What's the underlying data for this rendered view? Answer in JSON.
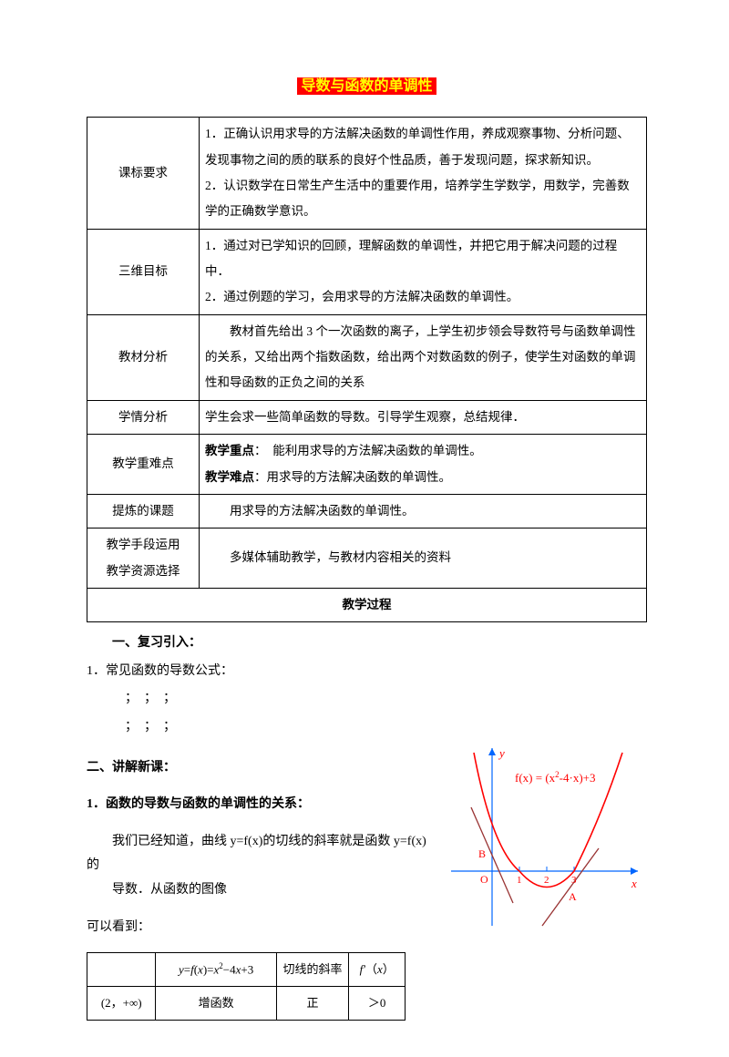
{
  "title": "导数与函数的单调性",
  "main_table": {
    "rows": [
      {
        "hdr": "课标要求",
        "body": "1．正确认识用求导的方法解决函数的单调性作用，养成观察事物、分析问题、发现事物之间的质的联系的良好个性品质，善于发现问题，探求新知识。\n2．认识数学在日常生产生活中的重要作用，培养学生学数学，用数学，完善数学的正确数学意识。"
      },
      {
        "hdr": "三维目标",
        "body": "1．通过对已学知识的回顾，理解函数的单调性，并把它用于解决问题的过程中．\n2．通过例题的学习，会用求导的方法解决函数的单调性。"
      },
      {
        "hdr": "教材分析",
        "body": "　　教材首先给出 3 个一次函数的离子，上学生初步领会导数符号与函数单调性的关系，又给出两个指数函数，给出两个对数函数的例子，使学生对函数的单调性和导函数的正负之间的关系"
      },
      {
        "hdr": "学情分析",
        "body": "学生会求一些简单函数的导数。引导学生观察，总结规律．"
      },
      {
        "hdr": "教学重难点",
        "body_html": true,
        "focus_label": "教学重点",
        "focus_text": "：　能利用求导的方法解决函数的单调性。",
        "diff_label": "教学难点",
        "diff_text": "：用求导的方法解决函数的单调性。"
      },
      {
        "hdr": "提炼的课题",
        "body": "　　用求导的方法解决函数的单调性。"
      },
      {
        "hdr": "教学手段运用\n教学资源选择",
        "body": "　　多媒体辅助教学，与教材内容相关的资料"
      }
    ],
    "process_hdr": "教学过程"
  },
  "sections": {
    "review_hdr": "一、复习引入：",
    "review_line": "1．常见函数的导数公式：",
    "dots1": "；　；　；",
    "dots2": "；　；　；",
    "lecture_hdr": "二、讲解新课：",
    "relation_hdr": "1．函数的导数与函数的单调性的关系：",
    "relation_p1": "我们已经知道，曲线 y=f(x)的切线的斜率就是函数 y=f(x)的",
    "relation_p1b": "导数．从函数的图像",
    "relation_p2": "可以看到："
  },
  "mini_table": {
    "head": [
      "",
      "y=f(x)=x²−4x+3",
      "切线的斜率",
      "f'（x）"
    ],
    "row": [
      "(2，+∞)",
      "增函数",
      "正",
      "＞0"
    ]
  },
  "graph": {
    "fn_label": "f(x) = (x²-4·x)+3",
    "y_label": "y",
    "x_label": "x",
    "O": "O",
    "A": "A",
    "B": "B",
    "t1": "1",
    "t2": "2",
    "t3": "3",
    "colors": {
      "text": "#ff0000",
      "axis": "#0066ff",
      "curve": "#ff0000",
      "tangent": "#993333"
    }
  }
}
